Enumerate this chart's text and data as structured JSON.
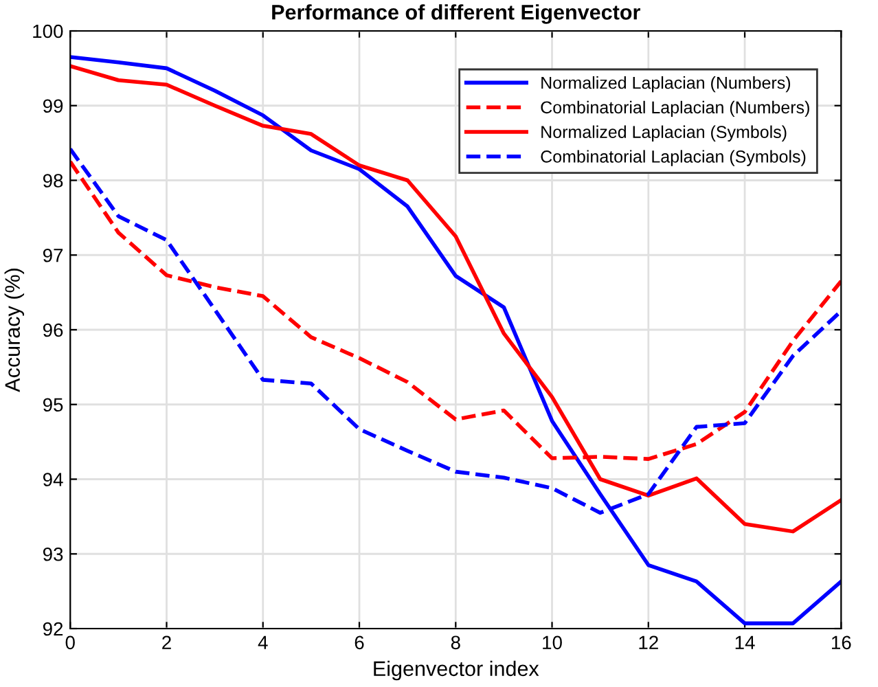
{
  "chart_data": {
    "type": "line",
    "title": "Performance of different Eigenvector",
    "xlabel": "Eigenvector index",
    "ylabel": "Accuracy (%)",
    "x": [
      0,
      1,
      2,
      3,
      4,
      5,
      6,
      7,
      8,
      9,
      10,
      11,
      12,
      13,
      14,
      15,
      16
    ],
    "series": [
      {
        "name": "Normalized Laplacian (Numbers)",
        "color": "#0000ff",
        "line_style": "solid",
        "values": [
          99.65,
          99.58,
          99.5,
          99.2,
          98.87,
          98.4,
          98.15,
          97.65,
          96.72,
          96.3,
          94.78,
          93.8,
          92.85,
          92.63,
          92.07,
          92.07,
          92.63
        ]
      },
      {
        "name": "Combinatorial Laplacian (Numbers)",
        "color": "#ff0000",
        "line_style": "dashed",
        "values": [
          98.25,
          97.3,
          96.73,
          96.57,
          96.45,
          95.9,
          95.62,
          95.3,
          94.8,
          94.92,
          94.28,
          94.3,
          94.27,
          94.47,
          94.9,
          95.85,
          96.65
        ]
      },
      {
        "name": "Normalized Laplacian (Symbols)",
        "color": "#ff0000",
        "line_style": "solid",
        "values": [
          99.53,
          99.34,
          99.28,
          99.0,
          98.73,
          98.62,
          98.2,
          98.0,
          97.25,
          95.95,
          95.1,
          94.0,
          93.78,
          94.01,
          93.4,
          93.3,
          93.72
        ]
      },
      {
        "name": "Combinatorial Laplacian (Symbols)",
        "color": "#0000ff",
        "line_style": "dashed",
        "values": [
          98.42,
          97.52,
          97.2,
          96.27,
          95.33,
          95.28,
          94.67,
          94.38,
          94.1,
          94.02,
          93.88,
          93.55,
          93.8,
          94.7,
          94.75,
          95.65,
          96.25
        ]
      }
    ],
    "xlim": [
      0,
      16
    ],
    "xticks": [
      0,
      2,
      4,
      6,
      8,
      10,
      12,
      14,
      16
    ],
    "ylim": [
      92,
      100
    ],
    "yticks": [
      92,
      93,
      94,
      95,
      96,
      97,
      98,
      99,
      100
    ],
    "grid": true,
    "legend": "top right",
    "marker": "none"
  }
}
